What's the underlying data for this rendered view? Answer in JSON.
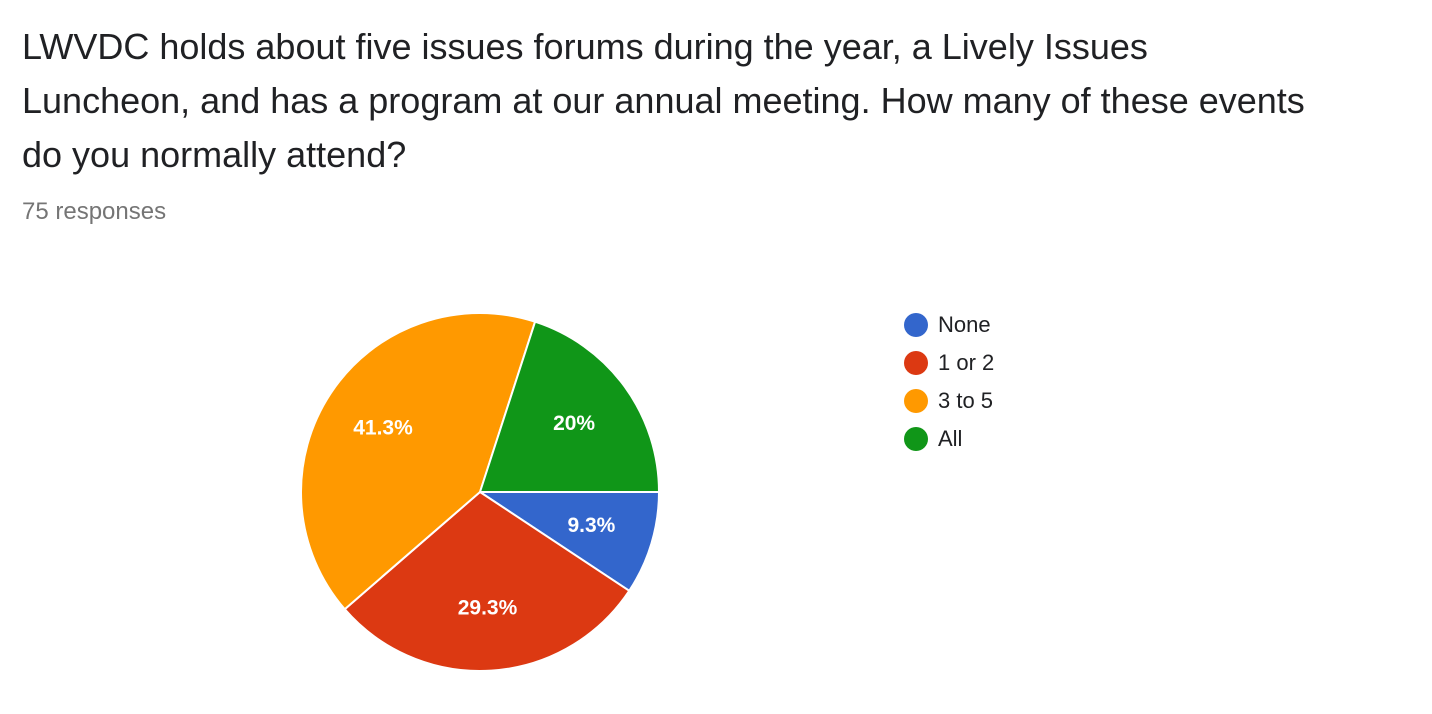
{
  "question": "LWVDC holds about five issues forums during the year, a Lively Issues Luncheon, and has a program at our annual meeting. How many of these events do you normally attend?",
  "responses_label": "75 responses",
  "chart_data": {
    "type": "pie",
    "title": "LWVDC holds about five issues forums during the year, a Lively Issues Luncheon, and has a program at our annual meeting. How many of these events do you normally attend?",
    "total_responses": 75,
    "legend_position": "right",
    "slices": [
      {
        "name": "None",
        "value": 9.3,
        "label": "9.3%",
        "color": "#3366cc"
      },
      {
        "name": "1 or 2",
        "value": 29.3,
        "label": "29.3%",
        "color": "#dc3912"
      },
      {
        "name": "3 to 5",
        "value": 41.3,
        "label": "41.3%",
        "color": "#ff9900"
      },
      {
        "name": "All",
        "value": 20,
        "label": "20%",
        "color": "#109618"
      }
    ]
  }
}
